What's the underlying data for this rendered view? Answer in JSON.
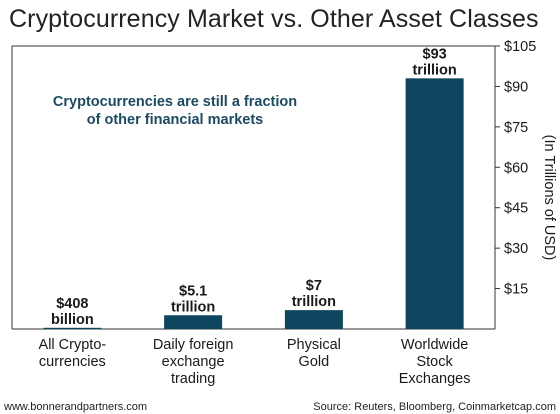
{
  "title": "Cryptocurrency Market vs. Other Asset Classes",
  "footer": {
    "left": "www.bonnerandpartners.com",
    "right": "Source: Reuters, Bloomberg, Coinmarketcap.com"
  },
  "annotation": [
    "Cryptocurrencies are still a fraction",
    "of other financial markets"
  ],
  "colors": {
    "bar": "#0e4660",
    "annotation": "#1b4a63",
    "axis": "#333333"
  },
  "chart_data": {
    "type": "bar",
    "title": "Cryptocurrency Market vs. Other Asset Classes",
    "ylabel": "(In Trillions of USD)",
    "ylim": [
      0,
      105
    ],
    "y_axis_position": "right",
    "grid": false,
    "legend": "none",
    "yticks": [
      15,
      30,
      45,
      60,
      75,
      90,
      105
    ],
    "ytick_labels": [
      "$15",
      "$30",
      "$45",
      "$60",
      "$75",
      "$90",
      "$105"
    ],
    "categories": [
      [
        "All Crypto-",
        "currencies"
      ],
      [
        "Daily foreign",
        "exchange",
        "trading"
      ],
      [
        "Physical",
        "Gold"
      ],
      [
        "Worldwide",
        "Stock",
        "Exchanges"
      ]
    ],
    "values": [
      0.408,
      5.1,
      7,
      93
    ],
    "data_labels": [
      [
        "$408",
        "billion"
      ],
      [
        "$5.1",
        "trillion"
      ],
      [
        "$7",
        "trillion"
      ],
      [
        "$93",
        "trillion"
      ]
    ]
  }
}
